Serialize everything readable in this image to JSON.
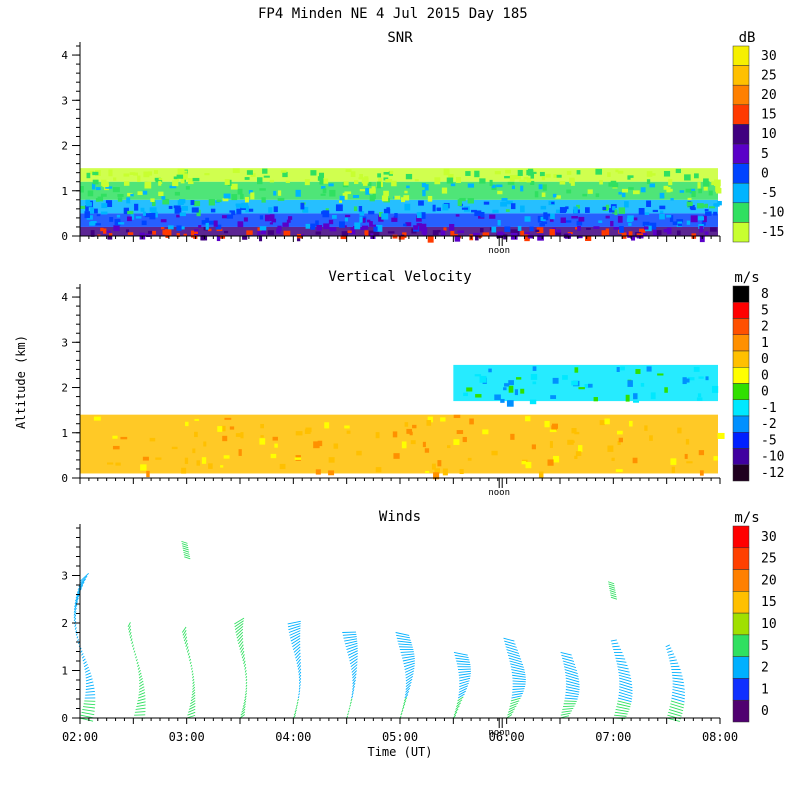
{
  "figure": {
    "title": "FP4 Minden NE   4 Jul 2015 Day 185",
    "ylabel": "Altitude (km)",
    "xlabel": "Time (UT)",
    "noon_label": "noon"
  },
  "chart_data": [
    {
      "type": "heatmap",
      "title": "SNR",
      "unit": "dB",
      "x_range_hours": [
        2,
        8
      ],
      "ylim": [
        0,
        4.2
      ],
      "y_ticks": [
        0,
        1,
        2,
        3,
        4
      ],
      "colorbar": {
        "labels": [
          "30",
          "25",
          "20",
          "15",
          "10",
          "5",
          "0",
          "-5",
          "-10",
          "-15"
        ],
        "colors": [
          "#f6f000",
          "#ffc000",
          "#ff8000",
          "#ff3a00",
          "#400080",
          "#5a00c8",
          "#0044ff",
          "#00b4ff",
          "#30e060",
          "#c8ff30"
        ]
      },
      "layers": [
        {
          "alt": [
            0.0,
            0.2
          ],
          "level": "10"
        },
        {
          "alt": [
            0.2,
            0.5
          ],
          "level": "0"
        },
        {
          "alt": [
            0.5,
            0.8
          ],
          "level": "-5"
        },
        {
          "alt": [
            0.8,
            1.2
          ],
          "level": "-10"
        },
        {
          "alt": [
            1.2,
            1.5
          ],
          "level": "-15"
        }
      ]
    },
    {
      "type": "heatmap",
      "title": "Vertical Velocity",
      "unit": "m/s",
      "x_range_hours": [
        2,
        8
      ],
      "ylim": [
        0,
        4.2
      ],
      "y_ticks": [
        0,
        1,
        2,
        3,
        4
      ],
      "colorbar": {
        "labels": [
          "8",
          "5",
          "2",
          "1",
          "0",
          "0",
          "0",
          "-1",
          "-2",
          "-5",
          "-10",
          "-12"
        ],
        "colors": [
          "#000000",
          "#ff0000",
          "#ff5000",
          "#ff9000",
          "#ffc000",
          "#ffff00",
          "#30e000",
          "#00e8ff",
          "#0090ff",
          "#0020ff",
          "#4000a0",
          "#200020"
        ]
      },
      "layers": [
        {
          "alt": [
            0.1,
            1.4
          ],
          "level": "0"
        },
        {
          "alt": [
            1.7,
            2.5
          ],
          "level": "-1",
          "start_hour": 5.5
        }
      ]
    },
    {
      "type": "scatter",
      "title": "Winds",
      "unit": "m/s",
      "x_range_hours": [
        2,
        8
      ],
      "ylim": [
        0,
        4
      ],
      "y_ticks": [
        0,
        1,
        2,
        3
      ],
      "colorbar": {
        "labels": [
          "30",
          "25",
          "20",
          "15",
          "10",
          "5",
          "2",
          "1",
          "0"
        ],
        "colors": [
          "#ff0000",
          "#ff4000",
          "#ff8000",
          "#ffc000",
          "#a0e000",
          "#30e060",
          "#00b0ff",
          "#1030ff",
          "#500070"
        ]
      },
      "profiles": [
        {
          "hour": 2.0,
          "top": 2.9,
          "speed": "2"
        },
        {
          "hour": 2.5,
          "top": 1.9,
          "speed": "5"
        },
        {
          "hour": 3.0,
          "top": 1.8,
          "speed": "5"
        },
        {
          "hour": 3.5,
          "top": 2.0,
          "speed": "5"
        },
        {
          "hour": 4.0,
          "top": 2.0,
          "speed": "2"
        },
        {
          "hour": 4.5,
          "top": 1.8,
          "speed": "2"
        },
        {
          "hour": 5.0,
          "top": 1.8,
          "speed": "2"
        },
        {
          "hour": 5.5,
          "top": 1.4,
          "speed": "2"
        },
        {
          "hour": 6.0,
          "top": 1.7,
          "speed": "2"
        },
        {
          "hour": 6.5,
          "top": 1.4,
          "speed": "2"
        },
        {
          "hour": 7.0,
          "top": 1.6,
          "speed": "2"
        },
        {
          "hour": 7.5,
          "top": 1.5,
          "speed": "2"
        }
      ],
      "isolated": [
        {
          "hour": 2.97,
          "alt": 3.55,
          "speed": "5"
        },
        {
          "hour": 6.97,
          "alt": 2.7,
          "speed": "5"
        }
      ],
      "x_ticks": [
        "02:00",
        "03:00",
        "04:00",
        "05:00",
        "06:00",
        "07:00",
        "08:00"
      ]
    }
  ]
}
